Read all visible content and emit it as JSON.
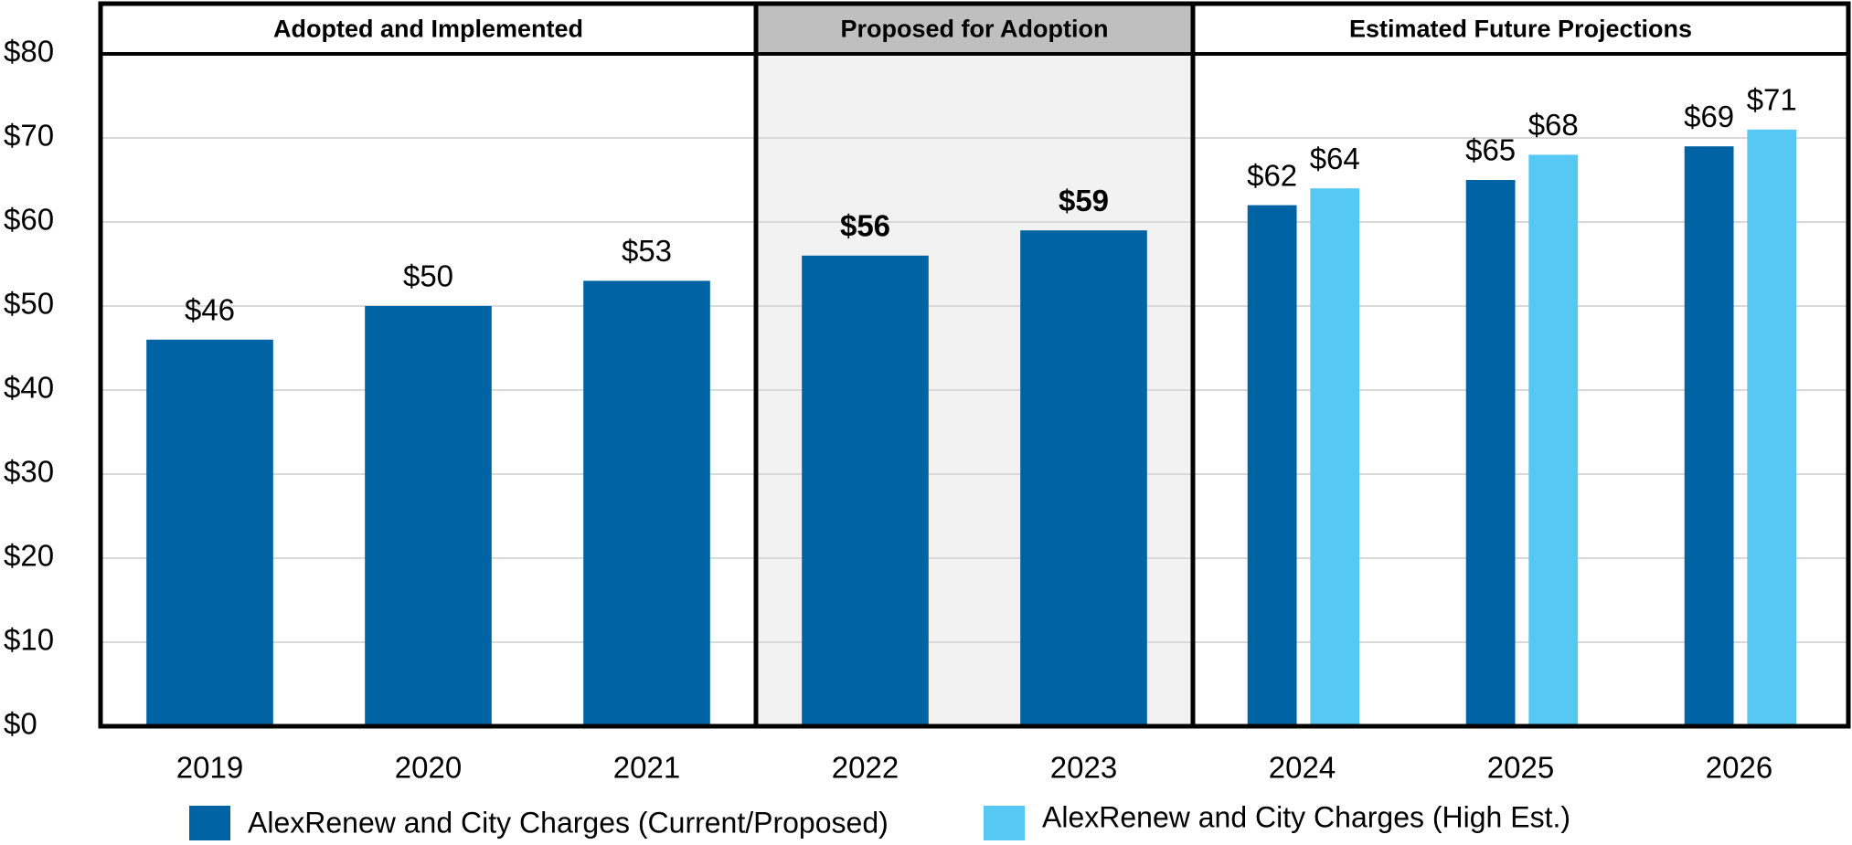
{
  "chart_data": {
    "type": "bar",
    "categories": [
      "2019",
      "2020",
      "2021",
      "2022",
      "2023",
      "2024",
      "2025",
      "2026"
    ],
    "series": [
      {
        "name": "AlexRenew and City Charges (Current/Proposed)",
        "color": "#0063a3",
        "values": [
          46,
          50,
          53,
          56,
          59,
          62,
          65,
          69
        ],
        "value_labels": [
          "$46",
          "$50",
          "$53",
          "$56",
          "$59",
          "$62",
          "$65",
          "$69"
        ]
      },
      {
        "name": "AlexRenew and City Charges (High Est.)",
        "color": "#56c8f3",
        "values": [
          null,
          null,
          null,
          null,
          null,
          64,
          68,
          71
        ],
        "value_labels": [
          null,
          null,
          null,
          null,
          null,
          "$64",
          "$68",
          "$71"
        ]
      }
    ],
    "sections": [
      {
        "label": "Adopted and Implemented",
        "from": 0,
        "to": 2,
        "highlight": false
      },
      {
        "label": "Proposed for Adoption",
        "from": 3,
        "to": 4,
        "highlight": true
      },
      {
        "label": "Estimated Future Projections",
        "from": 5,
        "to": 7,
        "highlight": false
      }
    ],
    "ylim": [
      0,
      80
    ],
    "yticks": [
      {
        "value": 0,
        "label": "$0"
      },
      {
        "value": 10,
        "label": "$10"
      },
      {
        "value": 20,
        "label": "$20"
      },
      {
        "value": 30,
        "label": "$30"
      },
      {
        "value": 40,
        "label": "$40"
      },
      {
        "value": 50,
        "label": "$50"
      },
      {
        "value": 60,
        "label": "$60"
      },
      {
        "value": 70,
        "label": "$70"
      },
      {
        "value": 80,
        "label": "$80"
      }
    ],
    "grid": true
  }
}
